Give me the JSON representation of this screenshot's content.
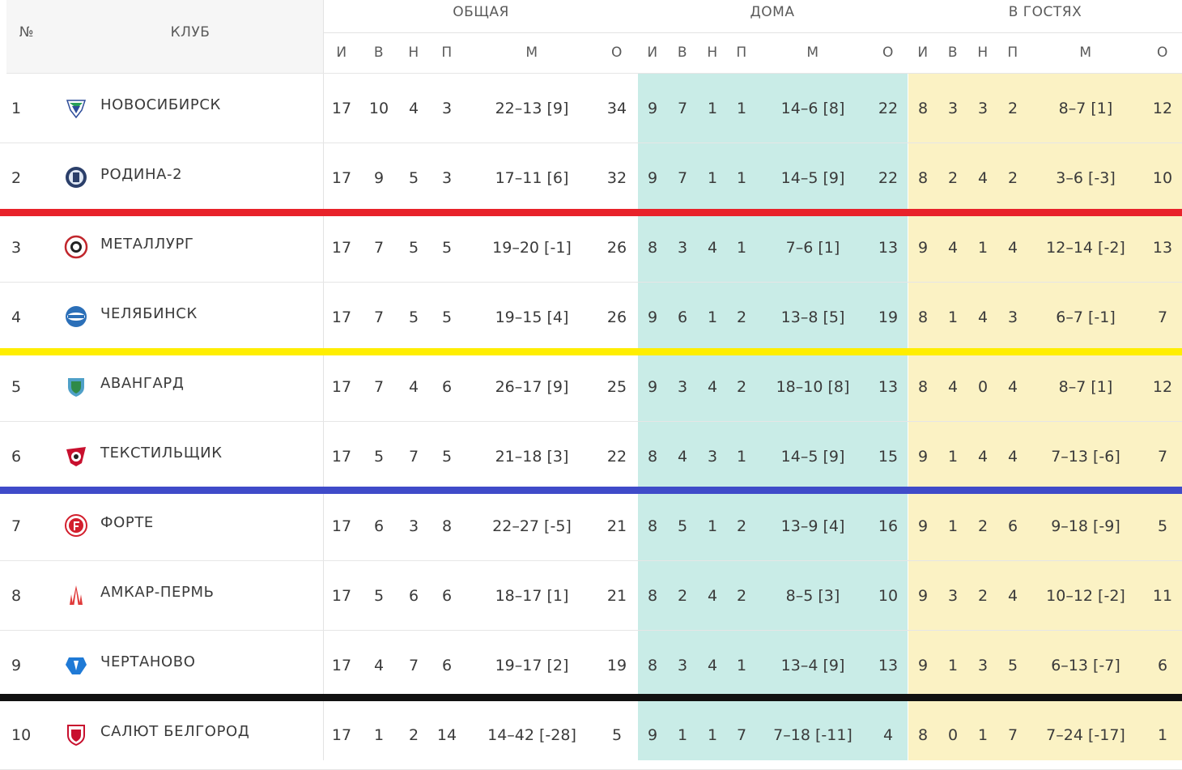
{
  "header": {
    "pos_label": "№",
    "club_label": "КЛУБ",
    "groups": [
      "ОБЩАЯ",
      "ДОМА",
      "В ГОСТЯХ"
    ],
    "cols": [
      "И",
      "В",
      "Н",
      "П",
      "М",
      "О"
    ]
  },
  "divider_colors": [
    "#e8222a",
    "#ffee00",
    "#3f4bc9",
    "#111111"
  ],
  "rows": [
    {
      "pos": "1",
      "club": "НОВОСИБИРСК",
      "logo": "novosibirsk-logo",
      "total": [
        "17",
        "10",
        "4",
        "3",
        "22–13 [9]",
        "34"
      ],
      "home": [
        "9",
        "7",
        "1",
        "1",
        "14–6 [8]",
        "22"
      ],
      "away": [
        "8",
        "3",
        "3",
        "2",
        "8–7 [1]",
        "12"
      ]
    },
    {
      "pos": "2",
      "club": "РОДИНА-2",
      "logo": "rodina-logo",
      "total": [
        "17",
        "9",
        "5",
        "3",
        "17–11 [6]",
        "32"
      ],
      "home": [
        "9",
        "7",
        "1",
        "1",
        "14–5 [9]",
        "22"
      ],
      "away": [
        "8",
        "2",
        "4",
        "2",
        "3–6 [-3]",
        "10"
      ]
    },
    {
      "pos": "3",
      "club": "МЕТАЛЛУРГ",
      "logo": "metallurg-logo",
      "total": [
        "17",
        "7",
        "5",
        "5",
        "19–20 [-1]",
        "26"
      ],
      "home": [
        "8",
        "3",
        "4",
        "1",
        "7–6 [1]",
        "13"
      ],
      "away": [
        "9",
        "4",
        "1",
        "4",
        "12–14 [-2]",
        "13"
      ]
    },
    {
      "pos": "4",
      "club": "ЧЕЛЯБИНСК",
      "logo": "chelyabinsk-logo",
      "total": [
        "17",
        "7",
        "5",
        "5",
        "19–15 [4]",
        "26"
      ],
      "home": [
        "9",
        "6",
        "1",
        "2",
        "13–8 [5]",
        "19"
      ],
      "away": [
        "8",
        "1",
        "4",
        "3",
        "6–7 [-1]",
        "7"
      ]
    },
    {
      "pos": "5",
      "club": "АВАНГАРД",
      "logo": "avangard-logo",
      "total": [
        "17",
        "7",
        "4",
        "6",
        "26–17 [9]",
        "25"
      ],
      "home": [
        "9",
        "3",
        "4",
        "2",
        "18–10 [8]",
        "13"
      ],
      "away": [
        "8",
        "4",
        "0",
        "4",
        "8–7 [1]",
        "12"
      ]
    },
    {
      "pos": "6",
      "club": "ТЕКСТИЛЬЩИК",
      "logo": "tekstilshchik-logo",
      "total": [
        "17",
        "5",
        "7",
        "5",
        "21–18 [3]",
        "22"
      ],
      "home": [
        "8",
        "4",
        "3",
        "1",
        "14–5 [9]",
        "15"
      ],
      "away": [
        "9",
        "1",
        "4",
        "4",
        "7–13 [-6]",
        "7"
      ]
    },
    {
      "pos": "7",
      "club": "ФОРТЕ",
      "logo": "forte-logo",
      "total": [
        "17",
        "6",
        "3",
        "8",
        "22–27 [-5]",
        "21"
      ],
      "home": [
        "8",
        "5",
        "1",
        "2",
        "13–9 [4]",
        "16"
      ],
      "away": [
        "9",
        "1",
        "2",
        "6",
        "9–18 [-9]",
        "5"
      ]
    },
    {
      "pos": "8",
      "club": "АМКАР-ПЕРМЬ",
      "logo": "amkar-logo",
      "total": [
        "17",
        "5",
        "6",
        "6",
        "18–17 [1]",
        "21"
      ],
      "home": [
        "8",
        "2",
        "4",
        "2",
        "8–5 [3]",
        "10"
      ],
      "away": [
        "9",
        "3",
        "2",
        "4",
        "10–12 [-2]",
        "11"
      ]
    },
    {
      "pos": "9",
      "club": "ЧЕРТАНОВО",
      "logo": "chertanovo-logo",
      "total": [
        "17",
        "4",
        "7",
        "6",
        "19–17 [2]",
        "19"
      ],
      "home": [
        "8",
        "3",
        "4",
        "1",
        "13–4 [9]",
        "13"
      ],
      "away": [
        "9",
        "1",
        "3",
        "5",
        "6–13 [-7]",
        "6"
      ]
    },
    {
      "pos": "10",
      "club": "САЛЮТ БЕЛГОРОД",
      "logo": "salyut-logo",
      "total": [
        "17",
        "1",
        "2",
        "14",
        "14–42 [-28]",
        "5"
      ],
      "home": [
        "9",
        "1",
        "1",
        "7",
        "7–18 [-11]",
        "4"
      ],
      "away": [
        "8",
        "0",
        "1",
        "7",
        "7–24 [-17]",
        "1"
      ]
    }
  ]
}
